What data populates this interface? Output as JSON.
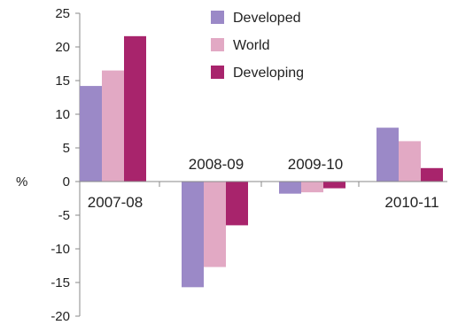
{
  "chart_data": {
    "type": "bar",
    "ylabel": "%",
    "ylim": [
      -20,
      25
    ],
    "yticks": [
      25,
      20,
      15,
      10,
      5,
      0,
      -5,
      -10,
      -15,
      -20
    ],
    "categories": [
      "2007-08",
      "2008-09",
      "2009-10",
      "2010-11"
    ],
    "series": [
      {
        "name": "Developed",
        "color": "#9b89c7",
        "values": [
          14.2,
          -15.7,
          -1.8,
          8.0
        ]
      },
      {
        "name": "World",
        "color": "#e2a9c4",
        "values": [
          16.5,
          -12.7,
          -1.6,
          6.0
        ]
      },
      {
        "name": "Developing",
        "color": "#a8246c",
        "values": [
          21.6,
          -6.5,
          -1.0,
          2.0
        ]
      }
    ],
    "legend_position": "top-center",
    "grid": false
  }
}
